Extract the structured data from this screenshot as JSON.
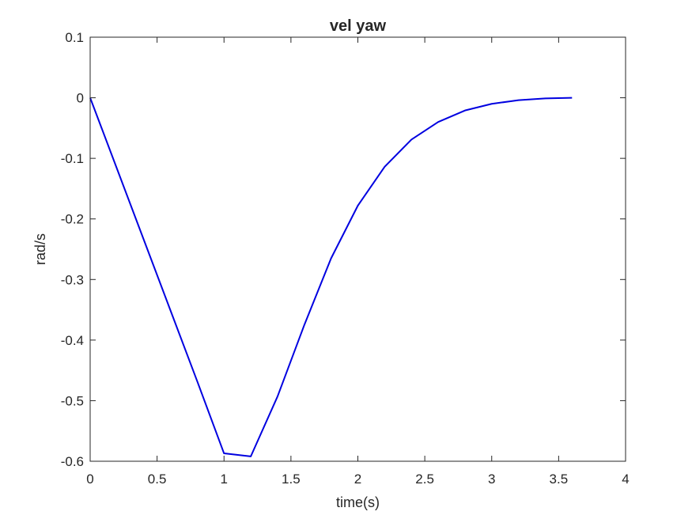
{
  "chart_data": {
    "type": "line",
    "title": "vel yaw",
    "xlabel": "time(s)",
    "ylabel": "rad/s",
    "xlim": [
      0,
      4
    ],
    "ylim": [
      -0.6,
      0.1
    ],
    "grid": false,
    "xticks": [
      0,
      0.5,
      1,
      1.5,
      2,
      2.5,
      3,
      3.5,
      4
    ],
    "xtick_labels": [
      "0",
      "0.5",
      "1",
      "1.5",
      "2",
      "2.5",
      "3",
      "3.5",
      "4"
    ],
    "yticks": [
      0.1,
      0,
      -0.1,
      -0.2,
      -0.3,
      -0.4,
      -0.5,
      -0.6
    ],
    "ytick_labels": [
      "0.1",
      "0",
      "-0.1",
      "-0.2",
      "-0.3",
      "-0.4",
      "-0.5",
      "-0.6"
    ],
    "series": [
      {
        "color": "#0000e0",
        "x": [
          0,
          0.2,
          0.4,
          0.6,
          0.8,
          1.0,
          1.2,
          1.4,
          1.6,
          1.8,
          2.0,
          2.2,
          2.4,
          2.6,
          2.8,
          3.0,
          3.2,
          3.4,
          3.6
        ],
        "y": [
          0,
          -0.117,
          -0.234,
          -0.351,
          -0.468,
          -0.587,
          -0.592,
          -0.493,
          -0.375,
          -0.265,
          -0.178,
          -0.114,
          -0.069,
          -0.04,
          -0.021,
          -0.01,
          -0.004,
          -0.001,
          0
        ]
      }
    ]
  }
}
